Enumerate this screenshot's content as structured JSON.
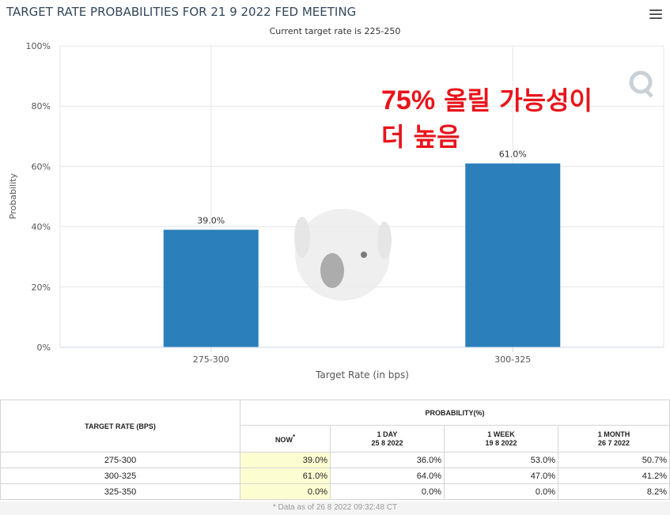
{
  "header": {
    "title": "TARGET RATE PROBABILITIES FOR 21 9 2022 FED MEETING",
    "subtitle": "Current target rate is 225-250"
  },
  "annotation": {
    "line1_pct": "75%",
    "line1_rest": " 올릴 가능성이",
    "line2": "더 높음"
  },
  "chart_data": {
    "type": "bar",
    "categories": [
      "275-300",
      "300-325"
    ],
    "values": [
      39.0,
      61.0
    ],
    "data_labels": [
      "39.0%",
      "61.0%"
    ],
    "title": "TARGET RATE PROBABILITIES FOR 21 9 2022 FED MEETING",
    "subtitle": "Current target rate is 225-250",
    "xlabel": "Target Rate (in bps)",
    "ylabel": "Probability",
    "ylim": [
      0,
      100
    ],
    "yticks": [
      "0%",
      "20%",
      "40%",
      "60%",
      "80%",
      "100%"
    ],
    "grid": true,
    "bar_color": "#2b7fbb"
  },
  "table": {
    "rate_header": "TARGET RATE (BPS)",
    "prob_header": "PROBABILITY(%)",
    "columns": [
      {
        "label": "NOW",
        "date": ""
      },
      {
        "label": "1 DAY",
        "date": "25 8 2022"
      },
      {
        "label": "1 WEEK",
        "date": "19 8 2022"
      },
      {
        "label": "1 MONTH",
        "date": "26 7 2022"
      }
    ],
    "now_marker": "*",
    "rows": [
      {
        "rate": "275-300",
        "values": [
          "39.0%",
          "36.0%",
          "53.0%",
          "50.7%"
        ]
      },
      {
        "rate": "300-325",
        "values": [
          "61.0%",
          "64.0%",
          "47.0%",
          "41.2%"
        ]
      },
      {
        "rate": "325-350",
        "values": [
          "0.0%",
          "0.0%",
          "0.0%",
          "8.2%"
        ]
      }
    ],
    "footnote": "* Data as of 26 8 2022 09:32:48 CT"
  }
}
